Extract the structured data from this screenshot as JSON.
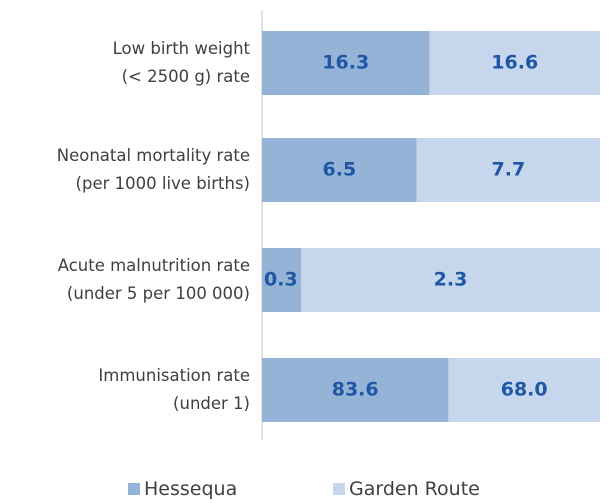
{
  "chart_data": {
    "type": "bar",
    "orientation": "horizontal",
    "stacked": "percent",
    "categories": [
      "Low birth weight\n(< 2500 g) rate",
      "Neonatal mortality rate\n(per 1000 live births)",
      "Acute malnutrition rate\n(under 5 per 100 000)",
      "Immunisation rate\n(under 1)"
    ],
    "series": [
      {
        "name": "Hessequa",
        "color": "#95b3d7",
        "values": [
          16.3,
          6.5,
          0.3,
          83.6
        ],
        "value_labels": [
          "16.3",
          "6.5",
          "0.3",
          "83.6"
        ]
      },
      {
        "name": "Garden Route",
        "color": "#c6d6ec",
        "values": [
          16.6,
          7.7,
          2.3,
          68.0
        ],
        "value_labels": [
          "16.6",
          "7.7",
          "2.3",
          "68.0"
        ]
      }
    ],
    "legend": "bottom"
  }
}
